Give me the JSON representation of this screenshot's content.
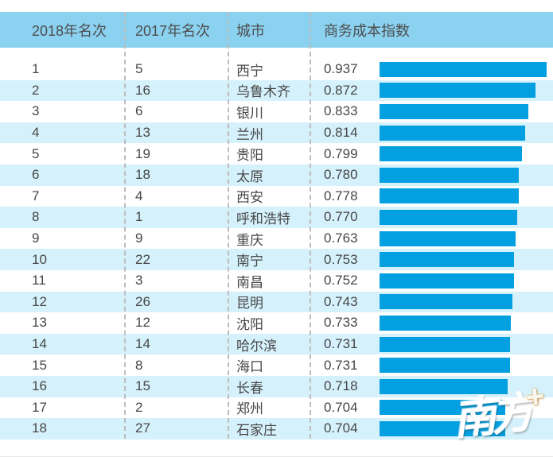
{
  "colors": {
    "header_bg": "#8BD1F0",
    "stripe_bg": "#D5F1FB",
    "bar_color": "#02A0E0",
    "plus_color": "#F5A31A"
  },
  "table": {
    "headers": [
      "2018年名次",
      "2017年名次",
      "城市",
      "商务成本指数"
    ],
    "rows": [
      {
        "rank2018": "1",
        "rank2017": "5",
        "city": "西宁",
        "value": "0.937"
      },
      {
        "rank2018": "2",
        "rank2017": "16",
        "city": "乌鲁木齐",
        "value": "0.872"
      },
      {
        "rank2018": "3",
        "rank2017": "6",
        "city": "银川",
        "value": "0.833"
      },
      {
        "rank2018": "4",
        "rank2017": "13",
        "city": "兰州",
        "value": "0.814"
      },
      {
        "rank2018": "5",
        "rank2017": "19",
        "city": "贵阳",
        "value": "0.799"
      },
      {
        "rank2018": "6",
        "rank2017": "18",
        "city": "太原",
        "value": "0.780"
      },
      {
        "rank2018": "7",
        "rank2017": "4",
        "city": "西安",
        "value": "0.778"
      },
      {
        "rank2018": "8",
        "rank2017": "1",
        "city": "呼和浩特",
        "value": "0.770"
      },
      {
        "rank2018": "9",
        "rank2017": "9",
        "city": "重庆",
        "value": "0.763"
      },
      {
        "rank2018": "10",
        "rank2017": "22",
        "city": "南宁",
        "value": "0.753"
      },
      {
        "rank2018": "11",
        "rank2017": "3",
        "city": "南昌",
        "value": "0.752"
      },
      {
        "rank2018": "12",
        "rank2017": "26",
        "city": "昆明",
        "value": "0.743"
      },
      {
        "rank2018": "13",
        "rank2017": "12",
        "city": "沈阳",
        "value": "0.733"
      },
      {
        "rank2018": "14",
        "rank2017": "14",
        "city": "哈尔滨",
        "value": "0.731"
      },
      {
        "rank2018": "15",
        "rank2017": "8",
        "city": "海口",
        "value": "0.731"
      },
      {
        "rank2018": "16",
        "rank2017": "15",
        "city": "长春",
        "value": "0.718"
      },
      {
        "rank2018": "17",
        "rank2017": "2",
        "city": "郑州",
        "value": "0.704"
      },
      {
        "rank2018": "18",
        "rank2017": "27",
        "city": "石家庄",
        "value": "0.704"
      }
    ]
  },
  "chart_data": {
    "type": "bar",
    "orientation": "horizontal",
    "title": "",
    "value_column": "商务成本指数",
    "categories": [
      "西宁",
      "乌鲁木齐",
      "银川",
      "兰州",
      "贵阳",
      "太原",
      "西安",
      "呼和浩特",
      "重庆",
      "南宁",
      "南昌",
      "昆明",
      "沈阳",
      "哈尔滨",
      "海口",
      "长春",
      "郑州",
      "石家庄"
    ],
    "values": [
      0.937,
      0.872,
      0.833,
      0.814,
      0.799,
      0.78,
      0.778,
      0.77,
      0.763,
      0.753,
      0.752,
      0.743,
      0.733,
      0.731,
      0.731,
      0.718,
      0.704,
      0.704
    ],
    "rank_2018": [
      1,
      2,
      3,
      4,
      5,
      6,
      7,
      8,
      9,
      10,
      11,
      12,
      13,
      14,
      15,
      16,
      17,
      18
    ],
    "rank_2017": [
      5,
      16,
      6,
      13,
      19,
      18,
      4,
      1,
      9,
      22,
      3,
      26,
      12,
      14,
      8,
      15,
      2,
      27
    ],
    "xlim": [
      0,
      1.0
    ],
    "grid": false,
    "legend": false,
    "bar_color": "#02A0E0"
  },
  "watermark": {
    "text": "南方",
    "plus": "+"
  }
}
